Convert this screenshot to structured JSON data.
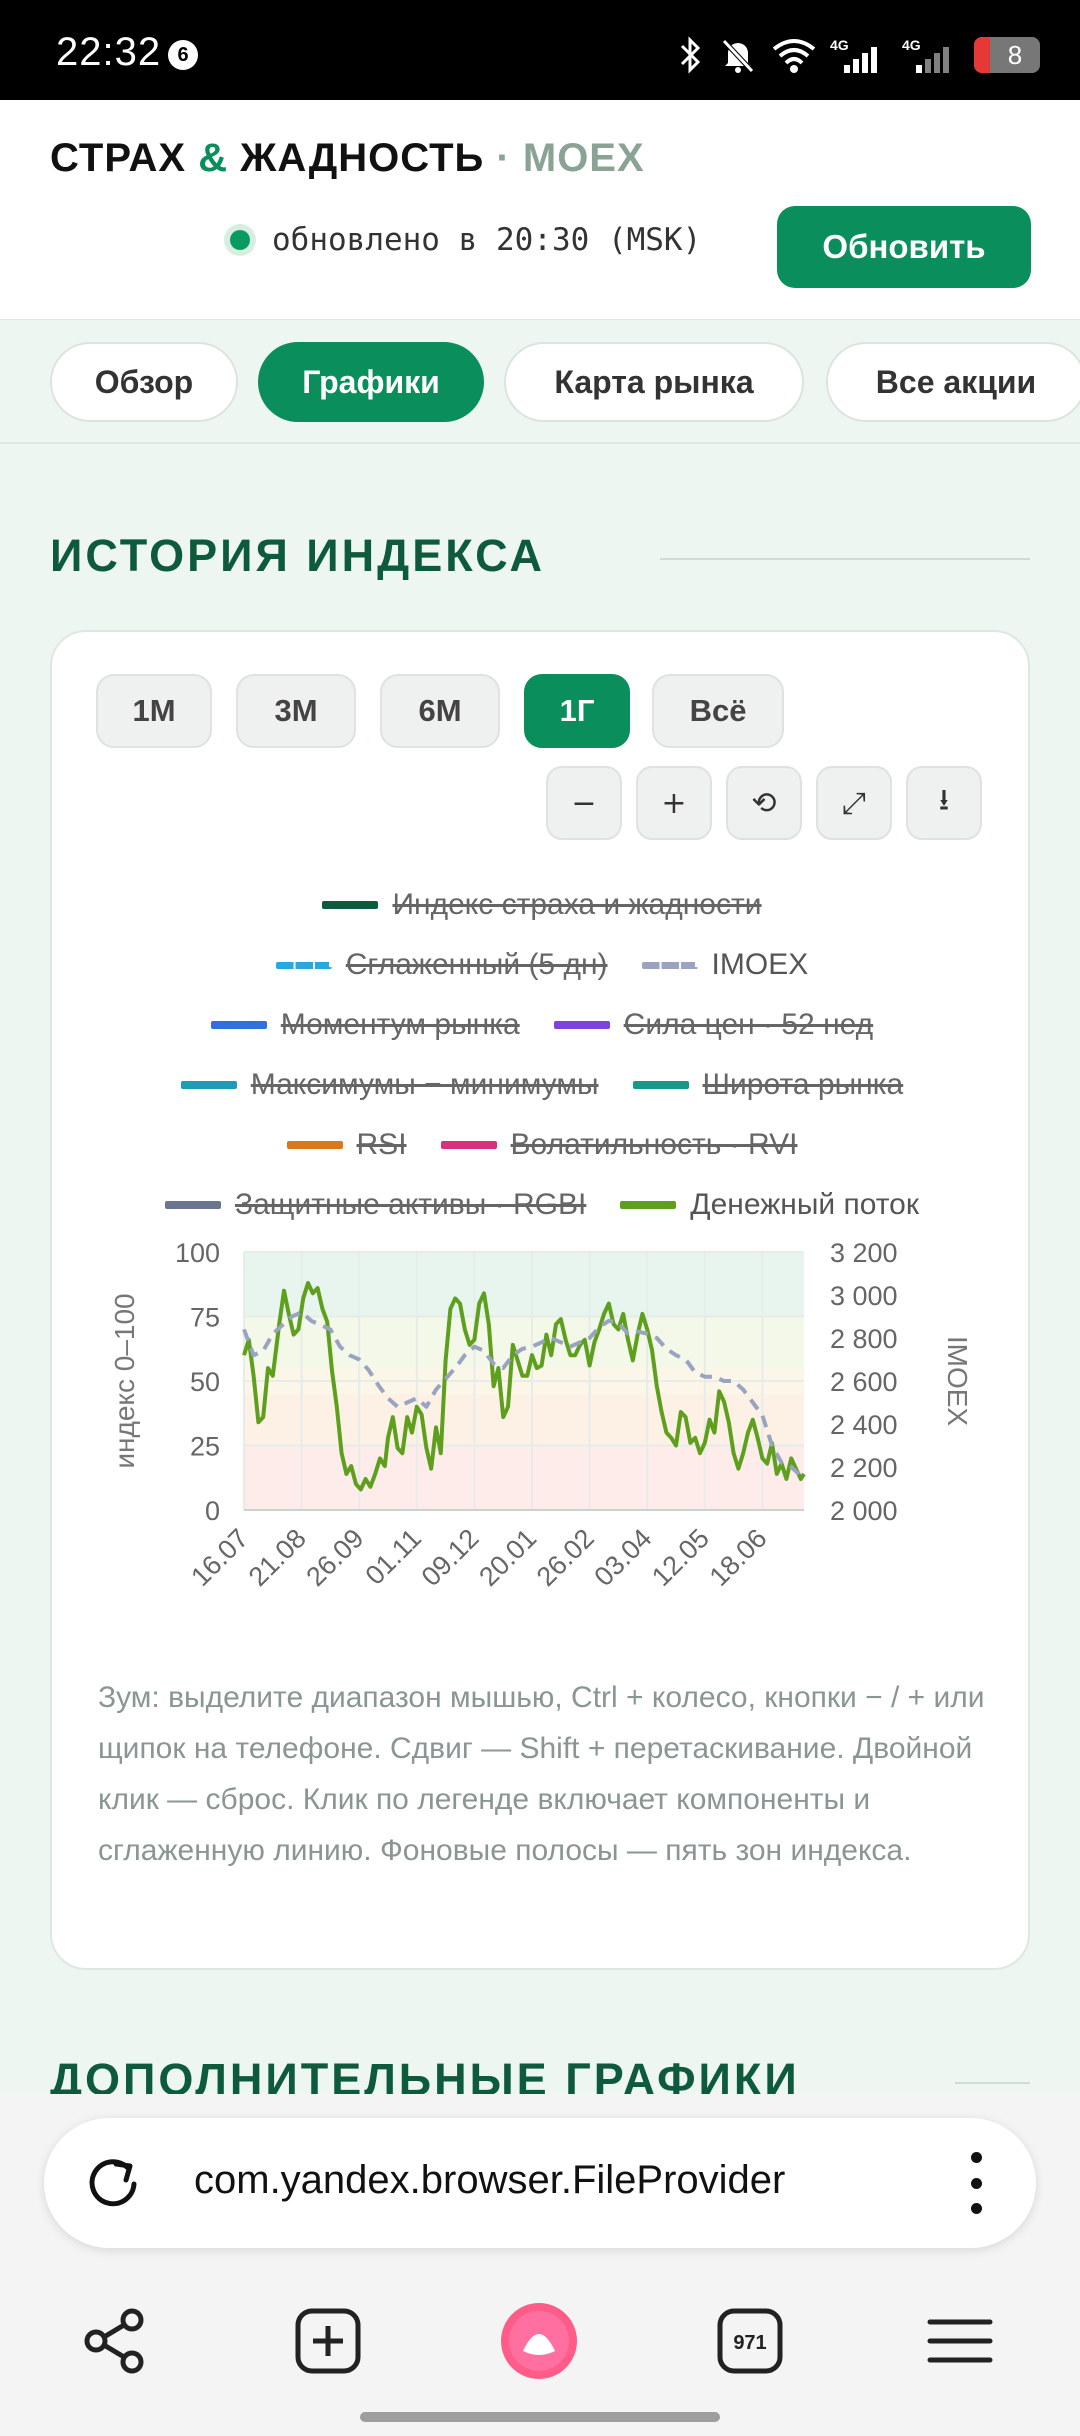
{
  "status_bar": {
    "time": "22:32",
    "notification_count": "6",
    "signal_1": "4G",
    "signal_2": "4G",
    "battery": "8"
  },
  "header": {
    "brand_part1": "СТРАХ",
    "brand_amp": "&",
    "brand_part2": "ЖАДНОСТЬ",
    "brand_sep": "·",
    "brand_moex": "MOEX",
    "updated_text": "обновлено в 20:30 (MSK)",
    "refresh_label": "Обновить"
  },
  "tabs": [
    {
      "label": "Обзор",
      "active": false
    },
    {
      "label": "Графики",
      "active": true
    },
    {
      "label": "Карта рынка",
      "active": false
    },
    {
      "label": "Все акции",
      "active": false
    }
  ],
  "section_title": "ИСТОРИЯ ИНДЕКСА",
  "ranges": [
    {
      "label": "1М",
      "active": false
    },
    {
      "label": "3М",
      "active": false
    },
    {
      "label": "6М",
      "active": false
    },
    {
      "label": "1Г",
      "active": true
    },
    {
      "label": "Всё",
      "active": false
    }
  ],
  "tools": [
    {
      "label": "−",
      "icon": "zoom-out-icon"
    },
    {
      "label": "+",
      "icon": "zoom-in-icon"
    },
    {
      "label": "⟲",
      "icon": "reset-icon"
    },
    {
      "label": "⤢",
      "icon": "expand-icon"
    },
    {
      "label": "⭳",
      "icon": "download-icon"
    }
  ],
  "legend": [
    {
      "label": "Индекс страха и жадности",
      "color": "#0e5a3c",
      "style": "solid",
      "enabled": false
    },
    {
      "label": "Сглаженный (5 дн)",
      "color": "#29a8e0",
      "style": "dash",
      "enabled": false
    },
    {
      "label": "IMOEX",
      "color": "#9aa3bf",
      "style": "dash",
      "enabled": true
    },
    {
      "label": "Моментум рынка",
      "color": "#2f6fe0",
      "style": "solid",
      "enabled": false
    },
    {
      "label": "Сила цен · 52 нед",
      "color": "#7b44e0",
      "style": "solid",
      "enabled": false
    },
    {
      "label": "Максимумы − минимумы",
      "color": "#1e9bb5",
      "style": "solid",
      "enabled": false
    },
    {
      "label": "Широта рынка",
      "color": "#15998a",
      "style": "solid",
      "enabled": false
    },
    {
      "label": "RSI",
      "color": "#d9781e",
      "style": "solid",
      "enabled": false
    },
    {
      "label": "Волатильность · RVI",
      "color": "#d92f7c",
      "style": "solid",
      "enabled": false
    },
    {
      "label": "Защитные активы · RGBI",
      "color": "#6b7590",
      "style": "solid",
      "enabled": false
    },
    {
      "label": "Денежный поток",
      "color": "#5ea01e",
      "style": "solid",
      "enabled": true
    }
  ],
  "chart_data": {
    "type": "line",
    "ylabel": "индекс 0–100",
    "y2label": "IMOEX",
    "ylim": [
      0,
      100
    ],
    "y2lim": [
      2000,
      3200
    ],
    "yticks": [
      "0",
      "25",
      "50",
      "75",
      "100"
    ],
    "y2ticks": [
      "2 000",
      "2 200",
      "2 400",
      "2 600",
      "2 800",
      "3 000",
      "3 200"
    ],
    "x_ticks": [
      "16.07",
      "21.08",
      "26.09",
      "01.11",
      "09.12",
      "20.01",
      "26.02",
      "03.04",
      "12.05",
      "18.06"
    ],
    "x_tick_positions": [
      0,
      36,
      72,
      108,
      144,
      180,
      216,
      252,
      288,
      324
    ],
    "x_end": 350,
    "zones": [
      {
        "from": 0,
        "to": 25,
        "color": "#fdecea"
      },
      {
        "from": 25,
        "to": 45,
        "color": "#fdf1e6"
      },
      {
        "from": 45,
        "to": 55,
        "color": "#fbf6e8"
      },
      {
        "from": 55,
        "to": 75,
        "color": "#f3f8e9"
      },
      {
        "from": 75,
        "to": 100,
        "color": "#e8f5ee"
      }
    ],
    "series": [
      {
        "name": "Денежный поток",
        "axis": "left",
        "color": "#5ea01e",
        "points": [
          [
            0,
            60
          ],
          [
            3,
            66
          ],
          [
            6,
            52
          ],
          [
            9,
            34
          ],
          [
            12,
            36
          ],
          [
            15,
            55
          ],
          [
            18,
            52
          ],
          [
            22,
            72
          ],
          [
            25,
            85
          ],
          [
            28,
            76
          ],
          [
            31,
            68
          ],
          [
            34,
            70
          ],
          [
            37,
            82
          ],
          [
            40,
            88
          ],
          [
            43,
            84
          ],
          [
            46,
            86
          ],
          [
            49,
            78
          ],
          [
            52,
            73
          ],
          [
            55,
            54
          ],
          [
            58,
            40
          ],
          [
            61,
            22
          ],
          [
            64,
            14
          ],
          [
            67,
            17
          ],
          [
            70,
            10
          ],
          [
            73,
            8
          ],
          [
            76,
            12
          ],
          [
            79,
            9
          ],
          [
            82,
            14
          ],
          [
            85,
            20
          ],
          [
            88,
            17
          ],
          [
            90,
            28
          ],
          [
            93,
            36
          ],
          [
            96,
            24
          ],
          [
            99,
            22
          ],
          [
            102,
            36
          ],
          [
            105,
            30
          ],
          [
            108,
            40
          ],
          [
            111,
            37
          ],
          [
            114,
            24
          ],
          [
            117,
            16
          ],
          [
            120,
            32
          ],
          [
            123,
            22
          ],
          [
            126,
            58
          ],
          [
            129,
            78
          ],
          [
            132,
            82
          ],
          [
            135,
            80
          ],
          [
            138,
            70
          ],
          [
            141,
            64
          ],
          [
            144,
            66
          ],
          [
            147,
            80
          ],
          [
            150,
            84
          ],
          [
            153,
            72
          ],
          [
            156,
            48
          ],
          [
            159,
            55
          ],
          [
            162,
            36
          ],
          [
            165,
            40
          ],
          [
            168,
            64
          ],
          [
            171,
            58
          ],
          [
            174,
            52
          ],
          [
            177,
            52
          ],
          [
            180,
            60
          ],
          [
            183,
            55
          ],
          [
            186,
            56
          ],
          [
            189,
            68
          ],
          [
            192,
            60
          ],
          [
            195,
            72
          ],
          [
            198,
            74
          ],
          [
            201,
            66
          ],
          [
            204,
            60
          ],
          [
            207,
            60
          ],
          [
            210,
            64
          ],
          [
            213,
            66
          ],
          [
            216,
            56
          ],
          [
            219,
            65
          ],
          [
            222,
            70
          ],
          [
            225,
            76
          ],
          [
            228,
            80
          ],
          [
            231,
            72
          ],
          [
            234,
            70
          ],
          [
            237,
            76
          ],
          [
            240,
            66
          ],
          [
            243,
            58
          ],
          [
            246,
            68
          ],
          [
            249,
            76
          ],
          [
            252,
            70
          ],
          [
            255,
            62
          ],
          [
            258,
            48
          ],
          [
            261,
            38
          ],
          [
            264,
            30
          ],
          [
            267,
            28
          ],
          [
            270,
            25
          ],
          [
            273,
            38
          ],
          [
            276,
            36
          ],
          [
            279,
            26
          ],
          [
            282,
            28
          ],
          [
            285,
            22
          ],
          [
            288,
            26
          ],
          [
            291,
            35
          ],
          [
            294,
            30
          ],
          [
            297,
            46
          ],
          [
            300,
            42
          ],
          [
            303,
            34
          ],
          [
            306,
            22
          ],
          [
            309,
            16
          ],
          [
            312,
            22
          ],
          [
            315,
            30
          ],
          [
            318,
            35
          ],
          [
            321,
            28
          ],
          [
            324,
            20
          ],
          [
            327,
            18
          ],
          [
            330,
            26
          ],
          [
            333,
            14
          ],
          [
            336,
            18
          ],
          [
            339,
            12
          ],
          [
            342,
            20
          ],
          [
            345,
            16
          ],
          [
            348,
            12
          ],
          [
            350,
            14
          ]
        ]
      },
      {
        "name": "IMOEX",
        "axis": "right",
        "color": "#9aa3bf",
        "points": [
          [
            0,
            2840
          ],
          [
            6,
            2720
          ],
          [
            12,
            2740
          ],
          [
            18,
            2820
          ],
          [
            24,
            2860
          ],
          [
            30,
            2900
          ],
          [
            36,
            2920
          ],
          [
            42,
            2880
          ],
          [
            48,
            2860
          ],
          [
            54,
            2840
          ],
          [
            60,
            2760
          ],
          [
            66,
            2720
          ],
          [
            72,
            2700
          ],
          [
            78,
            2650
          ],
          [
            84,
            2580
          ],
          [
            90,
            2520
          ],
          [
            96,
            2480
          ],
          [
            102,
            2500
          ],
          [
            108,
            2520
          ],
          [
            114,
            2480
          ],
          [
            120,
            2560
          ],
          [
            126,
            2610
          ],
          [
            132,
            2660
          ],
          [
            138,
            2720
          ],
          [
            144,
            2760
          ],
          [
            150,
            2740
          ],
          [
            156,
            2680
          ],
          [
            162,
            2660
          ],
          [
            168,
            2720
          ],
          [
            174,
            2750
          ],
          [
            180,
            2760
          ],
          [
            186,
            2780
          ],
          [
            192,
            2800
          ],
          [
            198,
            2780
          ],
          [
            204,
            2760
          ],
          [
            210,
            2780
          ],
          [
            216,
            2800
          ],
          [
            222,
            2850
          ],
          [
            228,
            2880
          ],
          [
            234,
            2870
          ],
          [
            240,
            2820
          ],
          [
            246,
            2830
          ],
          [
            252,
            2820
          ],
          [
            258,
            2800
          ],
          [
            264,
            2750
          ],
          [
            270,
            2720
          ],
          [
            276,
            2700
          ],
          [
            282,
            2640
          ],
          [
            288,
            2620
          ],
          [
            294,
            2620
          ],
          [
            300,
            2600
          ],
          [
            306,
            2600
          ],
          [
            312,
            2560
          ],
          [
            318,
            2500
          ],
          [
            324,
            2440
          ],
          [
            330,
            2300
          ],
          [
            336,
            2220
          ],
          [
            342,
            2200
          ],
          [
            348,
            2160
          ],
          [
            350,
            2150
          ]
        ]
      }
    ]
  },
  "help_text": "Зум: выделите диапазон мышью, Ctrl + колесо, кнопки − / + или щипок на телефоне. Сдвиг — Shift + перетаскивание. Двойной клик — сброс. Клик по легенде включает компоненты и сглаженную линию. Фоновые полосы — пять зон индекса.",
  "section_title_2": "ДОПОЛНИТЕЛЬНЫЕ ГРАФИКИ",
  "browser": {
    "url": "com.yandex.browser.FileProvider",
    "tabs_count": "971"
  }
}
